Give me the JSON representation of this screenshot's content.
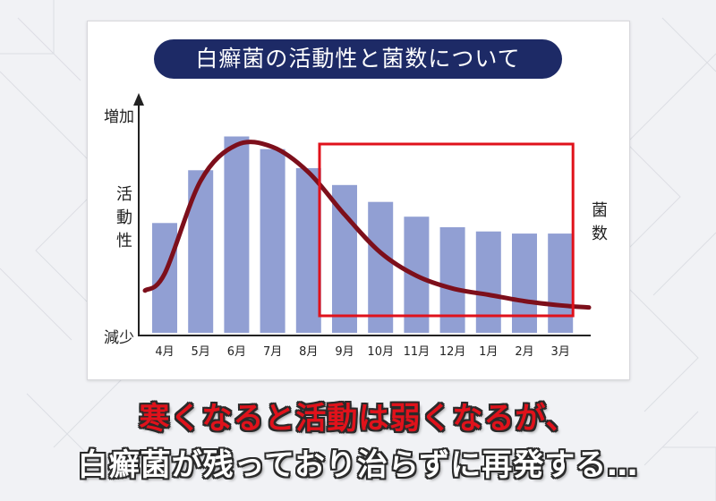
{
  "title": "白癬菌の活動性と菌数について",
  "caption_line1": "寒くなると活動は弱くなるが、",
  "caption_line2": "白癬菌が残っており治らずに再発する…",
  "colors": {
    "bar": "#919fd3",
    "curve": "#7d0f1b",
    "highlight": "#e0121b",
    "title_bg": "#1d2a66",
    "axis": "#222222"
  },
  "chart_data": {
    "type": "bar",
    "categories": [
      "4月",
      "5月",
      "6月",
      "7月",
      "8月",
      "9月",
      "10月",
      "11月",
      "12月",
      "1月",
      "2月",
      "3月"
    ],
    "series": [
      {
        "values": [
          52,
          77,
          93,
          87,
          78,
          70,
          62,
          55,
          50,
          48,
          47,
          47
        ]
      },
      {
        "type": "line",
        "values": [
          28,
          72,
          89,
          88,
          76,
          56,
          38,
          27,
          21,
          18,
          15,
          13
        ]
      }
    ],
    "ylim": [
      0,
      100
    ],
    "y_axis_labels": {
      "top": "増加",
      "bottom": "減少",
      "left_title": "活動性",
      "right_title": "菌数"
    },
    "highlight_range": [
      "9月",
      "3月"
    ]
  }
}
